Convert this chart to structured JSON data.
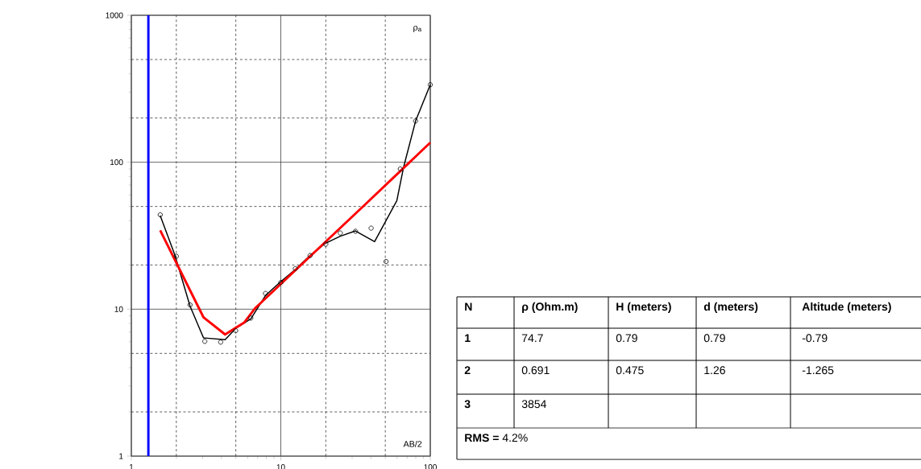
{
  "chart_data": [
    {
      "type": "line",
      "xlabel": "AB/2",
      "ylabel": "ρ$_{a}$",
      "log": "xy",
      "grid": true,
      "xlim": [
        1,
        100
      ],
      "ylim": [
        1,
        1000
      ],
      "xticks": [
        1,
        10,
        100,
        {
          "value": 2,
          "label": null
        },
        {
          "value": 5,
          "label": null
        },
        {
          "value": 20,
          "label": null
        },
        {
          "value": 50,
          "label": null
        }
      ],
      "yticks": [
        1,
        10,
        100,
        1000,
        {
          "value": 2,
          "label": null
        },
        {
          "value": 5,
          "label": null
        },
        {
          "value": 20,
          "label": null
        },
        {
          "value": 50,
          "label": null
        },
        {
          "value": 200,
          "label": null
        },
        {
          "value": 500,
          "label": null
        }
      ],
      "series": [
        {
          "type": "line",
          "color": "#0000ff",
          "x": [
            1.3,
            1.3
          ],
          "values": [
            1,
            1000
          ]
        },
        {
          "type": "line",
          "color": "#000000",
          "x": [
            1.56,
            1.96,
            2.47,
            3.04,
            4.24,
            4.99,
            6.3,
            7.9,
            10,
            12.5,
            15.7,
            19.8,
            25,
            31.6,
            42.4,
            59.7,
            66.2,
            79.8,
            100
          ],
          "values": [
            43.4,
            23.2,
            10.5,
            6.38,
            6.2,
            7.4,
            8.6,
            12.4,
            15.4,
            18.6,
            23.2,
            28,
            31.4,
            34.1,
            28.8,
            54.7,
            92,
            191,
            337
          ]
        },
        {
          "type": "line",
          "color": "#ff0000",
          "x": [
            1.56,
            3.04,
            4.24,
            5.68,
            6.7,
            37,
            100
          ],
          "values": [
            34.4,
            8.8,
            6.73,
            8.1,
            10.1,
            52,
            136
          ]
        },
        {
          "type": "scatter",
          "color": "#000000",
          "marker": "circle",
          "x": [
            1.56,
            2.0,
            2.47,
            3.1,
            3.96,
            4.99,
            6.3,
            7.9,
            10,
            12.5,
            15.7,
            20,
            25,
            31.6,
            40.2,
            50.6,
            63,
            79.8,
            100
          ],
          "values": [
            43.9,
            22.9,
            10.7,
            6.04,
            5.97,
            7.14,
            8.7,
            12.8,
            15.2,
            18.9,
            23.2,
            27.7,
            33.0,
            33.9,
            35.6,
            21.1,
            90,
            191,
            337
          ]
        }
      ]
    },
    {
      "type": "other",
      "annotations": [
        "N",
        "ρ (Ohm.m)",
        "H (meters)",
        "d (meters)",
        "Altitude (meters)",
        "1",
        "74.7",
        "0.79",
        "0.79",
        "-0.79",
        "2",
        "0.691",
        "0.475",
        "1.26",
        "-1.265",
        "3",
        "3854",
        "**RMS =** 4.2%"
      ]
    }
  ]
}
